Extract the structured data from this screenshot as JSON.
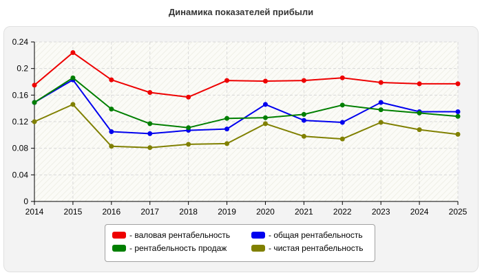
{
  "title": "Динамика показателей прибыли",
  "chart_data": {
    "type": "line",
    "title": "Динамика показателей прибыли",
    "x": [
      "2014",
      "2015",
      "2016",
      "2017",
      "2018",
      "2019",
      "2020",
      "2021",
      "2022",
      "2023",
      "2024",
      "2025"
    ],
    "ylim": [
      0,
      0.24
    ],
    "yticks": [
      "0",
      "0.04",
      "0.08",
      "0.12",
      "0.16",
      "0.2",
      "0.24"
    ],
    "grid": true,
    "legend_position": "bottom",
    "series": [
      {
        "name": "- валовая рентабельность",
        "color": "#ee0000",
        "values": [
          0.175,
          0.224,
          0.183,
          0.164,
          0.157,
          0.182,
          0.181,
          0.182,
          0.186,
          0.179,
          0.177,
          0.177
        ]
      },
      {
        "name": "- общая рентабельность",
        "color": "#0000ee",
        "values": [
          0.149,
          0.183,
          0.105,
          0.102,
          0.107,
          0.109,
          0.146,
          0.122,
          0.119,
          0.149,
          0.135,
          0.135
        ]
      },
      {
        "name": "- рентабельность продаж",
        "color": "#007f00",
        "values": [
          0.149,
          0.186,
          0.139,
          0.117,
          0.111,
          0.125,
          0.126,
          0.131,
          0.145,
          0.138,
          0.133,
          0.128
        ]
      },
      {
        "name": "- чистая рентабельность",
        "color": "#808000",
        "values": [
          0.12,
          0.146,
          0.083,
          0.081,
          0.086,
          0.087,
          0.117,
          0.098,
          0.094,
          0.119,
          0.108,
          0.101
        ]
      }
    ]
  }
}
